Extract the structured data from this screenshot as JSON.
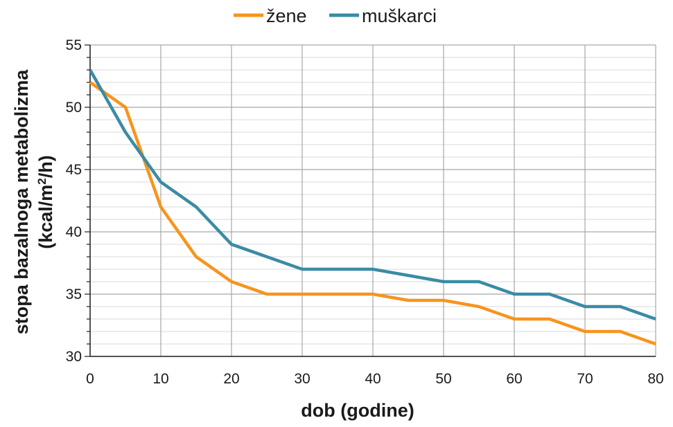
{
  "chart_data": {
    "type": "line",
    "title": "",
    "xlabel": "dob (godine)",
    "ylabel_line1": "stopa bazalnoga metabolizma",
    "ylabel_line2_prefix": "(kcal/m",
    "ylabel_line2_sup": "2",
    "ylabel_line2_suffix": "/h)",
    "xlim": [
      0,
      80
    ],
    "ylim": [
      30,
      55
    ],
    "x_ticks": [
      0,
      10,
      20,
      30,
      40,
      50,
      60,
      70,
      80
    ],
    "y_ticks": [
      30,
      35,
      40,
      45,
      50,
      55
    ],
    "x_tick_labels": [
      "0",
      "10",
      "20",
      "30",
      "40",
      "50",
      "60",
      "70",
      "80"
    ],
    "y_tick_labels": [
      "30",
      "35",
      "40",
      "45",
      "50",
      "55"
    ],
    "grid": true,
    "legend_position": "top-center",
    "series": [
      {
        "name": "žene",
        "color": "#F7941D",
        "points": [
          [
            0,
            52
          ],
          [
            5,
            50
          ],
          [
            10,
            42
          ],
          [
            15,
            38
          ],
          [
            20,
            36
          ],
          [
            25,
            35
          ],
          [
            30,
            35
          ],
          [
            35,
            35
          ],
          [
            40,
            35
          ],
          [
            45,
            34.5
          ],
          [
            50,
            34.5
          ],
          [
            55,
            34
          ],
          [
            60,
            33
          ],
          [
            65,
            33
          ],
          [
            70,
            32
          ],
          [
            75,
            32
          ],
          [
            80,
            31
          ]
        ]
      },
      {
        "name": "muškarci",
        "color": "#3B8BA5",
        "points": [
          [
            0,
            53
          ],
          [
            5,
            48
          ],
          [
            10,
            44
          ],
          [
            15,
            42
          ],
          [
            20,
            39
          ],
          [
            25,
            38
          ],
          [
            30,
            37
          ],
          [
            35,
            37
          ],
          [
            40,
            37
          ],
          [
            45,
            36.5
          ],
          [
            50,
            36
          ],
          [
            55,
            36
          ],
          [
            60,
            35
          ],
          [
            65,
            35
          ],
          [
            70,
            34
          ],
          [
            75,
            34
          ],
          [
            80,
            33
          ]
        ]
      }
    ]
  }
}
